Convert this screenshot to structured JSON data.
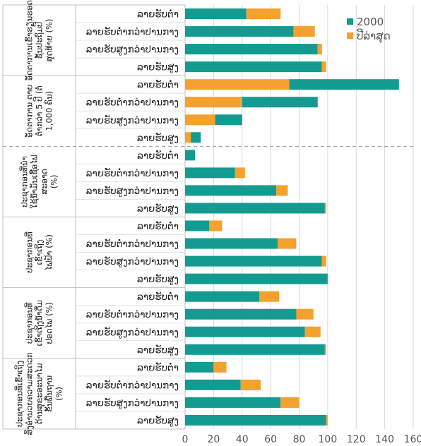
{
  "chart_data": {
    "type": "bar",
    "orientation": "horizontal",
    "stacked": true,
    "xlim": [
      0,
      160
    ],
    "xticks": [
      0,
      20,
      40,
      60,
      80,
      100,
      120,
      140,
      160
    ],
    "grid": true,
    "legend_position": "top-right",
    "colors": {
      "2000": "#139b92",
      "latest": "#f5a12e"
    },
    "legend": [
      {
        "key": "2000",
        "label": "2000",
        "color": "#139b92"
      },
      {
        "key": "latest",
        "label": "ປີລ່າສຸດ",
        "color": "#f5a12e"
      }
    ],
    "groups": [
      {
        "label": "ອັດຕາການເຂົ້າຮຽນຮອດຊັ້ນປະຖົມປີສຸດທ້າຍ (%)",
        "label_lines": [
          "ອັດຕາການເຂົ້າຮຽນຮອດ",
          "ຊັ້ນປະຖົມປີ",
          "ສຸດທ້າຍ (%)"
        ],
        "bars": [
          {
            "category": "ລາຍຮັບຕໍ່າ",
            "v2000": 43,
            "latest": 67
          },
          {
            "category": "ລາຍຮັບຕໍ່າກວ່າປານກາງ",
            "v2000": 76,
            "latest": 91
          },
          {
            "category": "ລາຍຮັບສູງກວ່າປານກາງ",
            "v2000": 93,
            "latest": 96
          },
          {
            "category": "ລາຍຮັບສູງ",
            "v2000": 96,
            "latest": 99
          }
        ]
      },
      {
        "label": "ອັດຕາການຕາຍຂອງເດັກອາຍຸຕໍ່າກວ່າ 5 ປີ (ຕໍ່ 1,000 ຄົນ)",
        "label_lines": [
          "ອັດຕາການ ຕາຍ",
          "ຕໍ່າກວ່າ  5 ປີ (ຕໍ່",
          "1,000 ຄົນ)"
        ],
        "bars": [
          {
            "category": "ລາຍຮັບຕໍ່າ",
            "v2000": 150,
            "latest": 73
          },
          {
            "category": "ລາຍຮັບຕໍ່າກວ່າປານກາງ",
            "v2000": 93,
            "latest": 40
          },
          {
            "category": "ລາຍຮັບສູງກວ່າປານກາງ",
            "v2000": 40,
            "latest": 21
          },
          {
            "category": "ລາຍຮັບສູງ",
            "v2000": 11,
            "latest": 4
          }
        ]
      },
      {
        "label": "ປະຊາກອນທີ່ນໍາໃຊ້ນໍ້າມັນເຊື້ອໄຟສະອາດ (%)",
        "label_lines": [
          "ປະຊາກອນທີ່ນໍາ",
          "ໃຊ້ນໍ້າມັນເຊື້ອໄຟ",
          "ສະອາດ",
          "(%)"
        ],
        "bars": [
          {
            "category": "ລາຍຮັບຕໍ່າ",
            "v2000": 7,
            "latest": 7
          },
          {
            "category": "ລາຍຮັບຕໍ່າກວ່າປານກາງ",
            "v2000": 35,
            "latest": 42
          },
          {
            "category": "ລາຍຮັບສູງກວ່າປານກາງ",
            "v2000": 64,
            "latest": 72
          },
          {
            "category": "ລາຍຮັບສູງ",
            "v2000": 98,
            "latest": 99
          }
        ]
      },
      {
        "label": "ປະຊາກອນທີ່ເຂົ້າເຖິງໄຟຟ້າ (%)",
        "label_lines": [
          "ປະຊາກອນທີ່",
          "ເຂົ້າເຖິງ",
          "ໄຟຟ້າ (%)"
        ],
        "bars": [
          {
            "category": "ລາຍຮັບຕໍ່າ",
            "v2000": 17,
            "latest": 26
          },
          {
            "category": "ລາຍຮັບຕໍ່າກວ່າປານກາງ",
            "v2000": 65,
            "latest": 78
          },
          {
            "category": "ລາຍຮັບສູງກວ່າປານກາງ",
            "v2000": 96,
            "latest": 99
          },
          {
            "category": "ລາຍຮັບສູງ",
            "v2000": 100,
            "latest": 100
          }
        ]
      },
      {
        "label": "ປະຊາກອນທີ່ເຂົ້າເຖິງນໍ້າດື່ມປອດໄພ (%)",
        "label_lines": [
          "ປະຊາກອນທີ່",
          "ເຂົ້າເຖິງນໍ້າດື່ມ",
          "ປອດໄພ (%)"
        ],
        "bars": [
          {
            "category": "ລາຍຮັບຕໍ່າ",
            "v2000": 52,
            "latest": 66
          },
          {
            "category": "ລາຍຮັບຕໍ່າກວ່າປານກາງ",
            "v2000": 78,
            "latest": 90
          },
          {
            "category": "ລາຍຮັບສູງກວ່າປານກາງ",
            "v2000": 84,
            "latest": 95
          },
          {
            "category": "ລາຍຮັບສູງ",
            "v2000": 98,
            "latest": 99
          }
        ]
      },
      {
        "label": "ປະຊາກອນທີ່ເຂົ້າເຖິງສິ່ງອໍານວຍຄວາມສະດວກດ້ານສຸຂະອະນາໄມຂັ້ນພື້ນຖານ (%)",
        "label_lines": [
          "ປະຊາກອນທີ່ເຂົ້າເຖິງ",
          "ສິ່ງອໍານວຍຄວາມສະດວກ",
          "ດ້ານສຸຂະອະນາໄມ",
          "ຂັ້ນພື້ນຖານ",
          "(%)"
        ],
        "bars": [
          {
            "category": "ລາຍຮັບຕໍ່າ",
            "v2000": 20,
            "latest": 29
          },
          {
            "category": "ລາຍຮັບຕໍ່າກວ່າປານກາງ",
            "v2000": 39,
            "latest": 53
          },
          {
            "category": "ລາຍຮັບສູງກວ່າປານກາງ",
            "v2000": 67,
            "latest": 80
          },
          {
            "category": "ລາຍຮັບສູງ",
            "v2000": 99,
            "latest": 100
          }
        ]
      }
    ]
  }
}
